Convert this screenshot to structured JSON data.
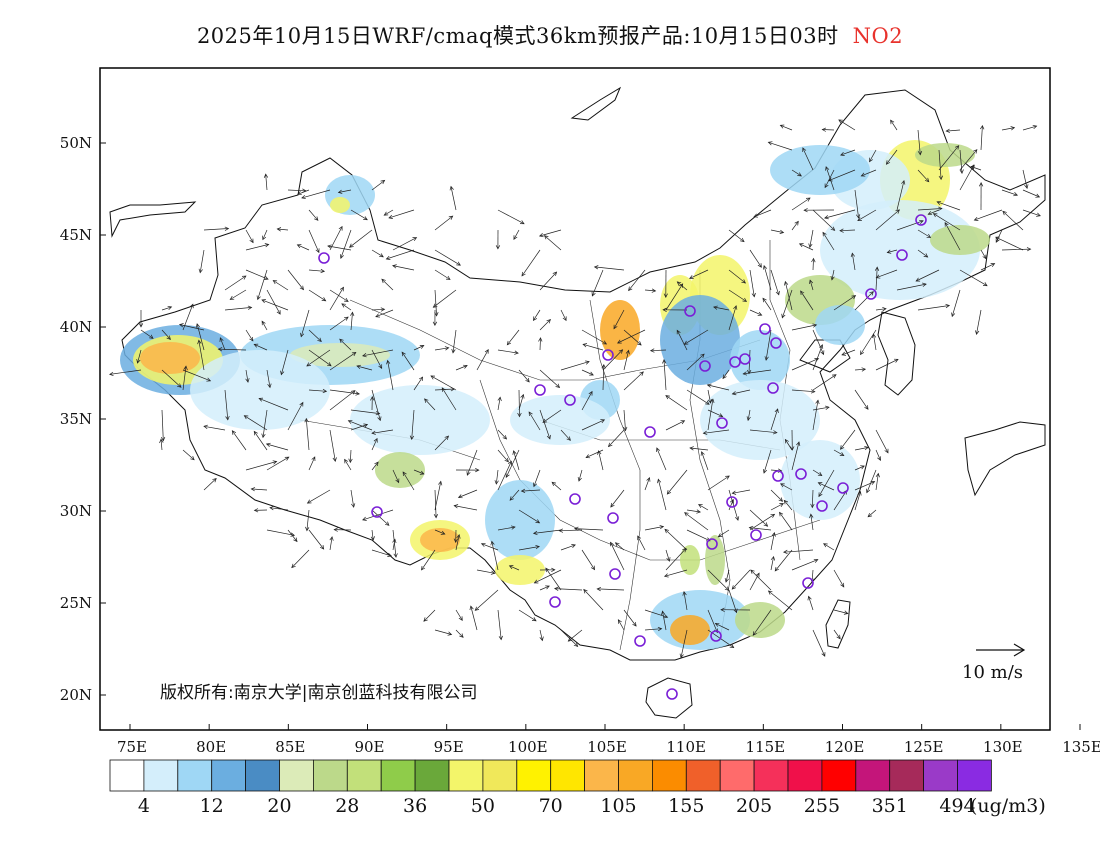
{
  "header": {
    "title": "2025年10月15日WRF/cmaq模式36km预报产品:10月15日03时",
    "pollutant": "NO2",
    "pollutant_color": "#e8322c"
  },
  "map": {
    "lon_labels": [
      "75E",
      "80E",
      "85E",
      "90E",
      "95E",
      "100E",
      "105E",
      "110E",
      "115E",
      "120E",
      "125E",
      "130E",
      "135E"
    ],
    "lat_labels": [
      "50N",
      "45N",
      "40N",
      "35N",
      "30N",
      "25N",
      "20N"
    ],
    "copyright": "版权所有:南京大学|南京创蓝科技有限公司",
    "wind_reference": "10 m/s",
    "station_marker_color": "#7a1fd6"
  },
  "legend": {
    "colors": [
      "#ffffff",
      "#d4eefb",
      "#9fd7f5",
      "#6baee0",
      "#4a8cc4",
      "#dcebb8",
      "#bcd98a",
      "#c2e07a",
      "#8fcc4a",
      "#6aa83a",
      "#f3f56a",
      "#f0e85a",
      "#fff200",
      "#ffe600",
      "#fbb64a",
      "#f9a825",
      "#fb8c00",
      "#f0602a",
      "#ff6b6b",
      "#f5305a",
      "#f0104a",
      "#ff0000",
      "#c4157a",
      "#a62a5a",
      "#9a3ac8",
      "#8a2be2"
    ],
    "labels": [
      "4",
      "12",
      "20",
      "28",
      "36",
      "50",
      "70",
      "105",
      "155",
      "205",
      "255",
      "351",
      "494"
    ],
    "unit": "(ug/m3)"
  }
}
